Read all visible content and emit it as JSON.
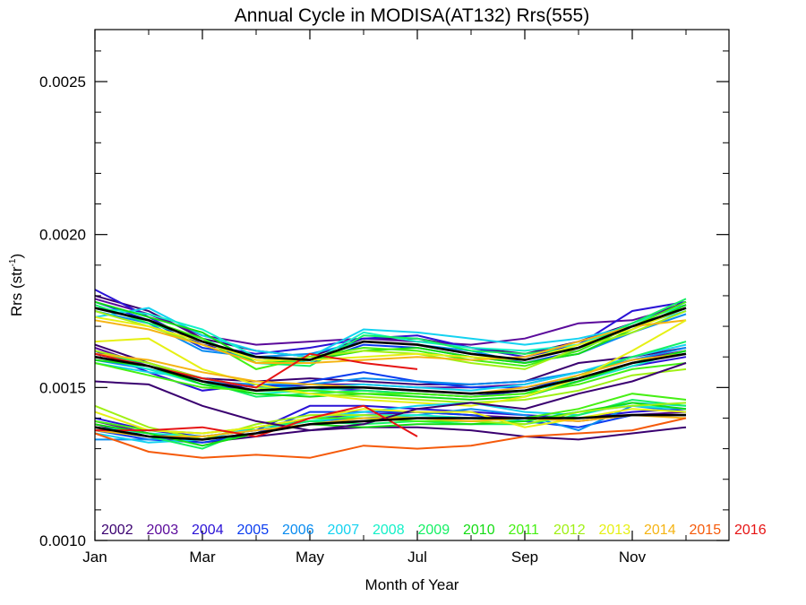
{
  "chart_data": {
    "type": "line",
    "title": "Annual Cycle in MODISA(AT132) Rrs(555)",
    "xlabel": "Month of Year",
    "ylabel_main": "Rrs (str",
    "ylabel_sup": "-1",
    "ylabel_close": ")",
    "xlim": [
      1,
      12.8
    ],
    "ylim": [
      0.001,
      0.00267
    ],
    "x_ticks": [
      {
        "value": 1,
        "label": "Jan"
      },
      {
        "value": 3,
        "label": "Mar"
      },
      {
        "value": 5,
        "label": "May"
      },
      {
        "value": 7,
        "label": "Jul"
      },
      {
        "value": 9,
        "label": "Sep"
      },
      {
        "value": 11,
        "label": "Nov"
      }
    ],
    "y_ticks": [
      {
        "value": 0.001,
        "label": "0.0010"
      },
      {
        "value": 0.0015,
        "label": "0.0015"
      },
      {
        "value": 0.002,
        "label": "0.0020"
      },
      {
        "value": 0.0025,
        "label": "0.0025"
      }
    ],
    "legend": [
      {
        "label": "2002",
        "color": "#3a0070"
      },
      {
        "label": "2003",
        "color": "#5b0a9b"
      },
      {
        "label": "2004",
        "color": "#2a12d6"
      },
      {
        "label": "2005",
        "color": "#0a3cf0"
      },
      {
        "label": "2006",
        "color": "#0a8cf0"
      },
      {
        "label": "2007",
        "color": "#14d2f0"
      },
      {
        "label": "2008",
        "color": "#14f0c8"
      },
      {
        "label": "2009",
        "color": "#14f064"
      },
      {
        "label": "2010",
        "color": "#14dc14"
      },
      {
        "label": "2011",
        "color": "#46f014"
      },
      {
        "label": "2012",
        "color": "#a0f014"
      },
      {
        "label": "2013",
        "color": "#e6f014"
      },
      {
        "label": "2014",
        "color": "#f5b414"
      },
      {
        "label": "2015",
        "color": "#f55a0a"
      },
      {
        "label": "2016",
        "color": "#e61414"
      }
    ],
    "line_groups": [
      {
        "name_key": "high",
        "means": [
          0.00176,
          0.00172,
          0.00165,
          0.0016,
          0.00159,
          0.00165,
          0.00164,
          0.00161,
          0.00159,
          0.00163,
          0.0017,
          0.00176
        ],
        "series": [
          [
            0.0018,
            0.00175,
            0.00166,
            0.00162,
            0.0016,
            0.00166,
            0.00166,
            0.00163,
            0.00161,
            0.00165,
            0.00171,
            0.00178
          ],
          [
            0.00179,
            0.00174,
            0.00167,
            0.00164,
            0.00165,
            0.00166,
            0.00165,
            0.00164,
            0.00166,
            0.00171,
            0.00172,
            0.00177
          ],
          [
            0.00182,
            0.00173,
            0.00164,
            0.00161,
            0.00163,
            0.00166,
            0.00167,
            0.00163,
            0.0016,
            0.00164,
            0.00175,
            0.00178
          ],
          [
            0.00178,
            0.00172,
            0.00163,
            0.0016,
            0.00158,
            0.00164,
            0.00163,
            0.0016,
            0.00158,
            0.00162,
            0.0017,
            0.00176
          ],
          [
            0.00175,
            0.00171,
            0.00162,
            0.0016,
            0.00161,
            0.00165,
            0.00164,
            0.00162,
            0.00158,
            0.00161,
            0.00168,
            0.00174
          ],
          [
            0.00173,
            0.00176,
            0.00167,
            0.00162,
            0.0016,
            0.00169,
            0.00168,
            0.00166,
            0.00164,
            0.00166,
            0.0017,
            0.00175
          ],
          [
            0.00176,
            0.00174,
            0.00169,
            0.0016,
            0.00158,
            0.00168,
            0.00165,
            0.00163,
            0.00162,
            0.00164,
            0.00171,
            0.00177
          ],
          [
            0.00177,
            0.00171,
            0.00166,
            0.00158,
            0.00157,
            0.00167,
            0.00166,
            0.00162,
            0.00161,
            0.00163,
            0.00171,
            0.00179
          ],
          [
            0.00178,
            0.00173,
            0.00168,
            0.00158,
            0.00159,
            0.00162,
            0.00163,
            0.0016,
            0.00158,
            0.00161,
            0.00169,
            0.00177
          ],
          [
            0.00176,
            0.00172,
            0.00166,
            0.00156,
            0.0016,
            0.00163,
            0.00162,
            0.00159,
            0.00157,
            0.00162,
            0.0017,
            0.00178
          ],
          [
            0.00175,
            0.0017,
            0.00164,
            0.00158,
            0.0016,
            0.00162,
            0.00161,
            0.00158,
            0.00156,
            0.00163,
            0.00168,
            0.00175
          ],
          [
            0.00173,
            0.0017,
            0.00165,
            0.00159,
            0.00159,
            0.0016,
            0.00161,
            0.0016,
            0.00159,
            0.00164,
            0.00169,
            0.00176
          ],
          [
            0.00172,
            0.00169,
            0.00164,
            0.00158,
            0.00158,
            0.00159,
            0.0016,
            0.00159,
            0.0016,
            0.00165,
            0.0017,
            0.00172
          ]
        ]
      },
      {
        "name_key": "mid",
        "means": [
          0.0016,
          0.00157,
          0.00152,
          0.00149,
          0.0015,
          0.0015,
          0.00149,
          0.00148,
          0.00149,
          0.00153,
          0.00158,
          0.00161
        ],
        "series": [
          [
            0.00164,
            0.00158,
            0.00153,
            0.00152,
            0.00153,
            0.00152,
            0.00151,
            0.00151,
            0.00152,
            0.00158,
            0.0016,
            0.00163
          ],
          [
            0.00163,
            0.00157,
            0.00152,
            0.0015,
            0.00151,
            0.00151,
            0.0015,
            0.0015,
            0.00151,
            0.00155,
            0.00159,
            0.00162
          ],
          [
            0.00162,
            0.00155,
            0.00149,
            0.00151,
            0.0015,
            0.00149,
            0.00148,
            0.00147,
            0.00149,
            0.00152,
            0.00157,
            0.0016
          ],
          [
            0.00161,
            0.00157,
            0.00151,
            0.00149,
            0.00152,
            0.00155,
            0.00152,
            0.0015,
            0.0015,
            0.00153,
            0.00158,
            0.00161
          ],
          [
            0.00159,
            0.00156,
            0.00152,
            0.00151,
            0.00151,
            0.00153,
            0.00152,
            0.00151,
            0.00152,
            0.00155,
            0.00159,
            0.00163
          ],
          [
            0.00158,
            0.00155,
            0.00153,
            0.0015,
            0.0015,
            0.00151,
            0.0015,
            0.00149,
            0.00151,
            0.00155,
            0.0016,
            0.00164
          ],
          [
            0.0016,
            0.00156,
            0.00151,
            0.00148,
            0.00149,
            0.0015,
            0.00149,
            0.00148,
            0.00149,
            0.00152,
            0.00157,
            0.00162
          ],
          [
            0.00161,
            0.00158,
            0.00152,
            0.00147,
            0.00148,
            0.00149,
            0.00148,
            0.00147,
            0.00148,
            0.00154,
            0.0016,
            0.00165
          ],
          [
            0.00159,
            0.00157,
            0.00151,
            0.00148,
            0.00147,
            0.00148,
            0.00147,
            0.00146,
            0.00147,
            0.00152,
            0.00158,
            0.00162
          ],
          [
            0.00158,
            0.00154,
            0.0015,
            0.00149,
            0.00149,
            0.00148,
            0.00148,
            0.00147,
            0.00148,
            0.00151,
            0.00156,
            0.00158
          ],
          [
            0.00162,
            0.00158,
            0.00153,
            0.0015,
            0.00148,
            0.00147,
            0.00146,
            0.00145,
            0.00146,
            0.00149,
            0.00154,
            0.00156
          ],
          [
            0.00165,
            0.00166,
            0.00156,
            0.00151,
            0.00148,
            0.00146,
            0.00145,
            0.00144,
            0.00147,
            0.00153,
            0.00162,
            0.00172
          ],
          [
            0.00161,
            0.00159,
            0.00155,
            0.00152,
            0.00151,
            0.0015,
            0.00149,
            0.00148,
            0.0015,
            0.00154,
            0.00159,
            0.00161
          ]
        ]
      },
      {
        "name_key": "low",
        "means": [
          0.00137,
          0.00134,
          0.00133,
          0.00135,
          0.00138,
          0.00139,
          0.0014,
          0.0014,
          0.0014,
          0.0014,
          0.00141,
          0.00141
        ],
        "series": [
          [
            0.00138,
            0.00134,
            0.00132,
            0.00134,
            0.00136,
            0.00137,
            0.00137,
            0.00136,
            0.00134,
            0.00133,
            0.00135,
            0.00137
          ],
          [
            0.00139,
            0.00135,
            0.00133,
            0.00135,
            0.0014,
            0.00141,
            0.00142,
            0.00141,
            0.0014,
            0.00139,
            0.00141,
            0.00142
          ],
          [
            0.0014,
            0.00136,
            0.00134,
            0.00136,
            0.00144,
            0.00144,
            0.00143,
            0.00142,
            0.00141,
            0.0014,
            0.00142,
            0.00143
          ],
          [
            0.00136,
            0.00133,
            0.00132,
            0.00135,
            0.00142,
            0.00142,
            0.00142,
            0.00141,
            0.00139,
            0.00137,
            0.00141,
            0.00141
          ],
          [
            0.00133,
            0.00133,
            0.00134,
            0.00136,
            0.00139,
            0.0014,
            0.00141,
            0.00143,
            0.00141,
            0.00136,
            0.00144,
            0.00142
          ],
          [
            0.00135,
            0.00132,
            0.00133,
            0.00137,
            0.0014,
            0.00142,
            0.00144,
            0.00145,
            0.00142,
            0.00141,
            0.00145,
            0.00144
          ],
          [
            0.00137,
            0.00135,
            0.00134,
            0.00136,
            0.00139,
            0.00141,
            0.00141,
            0.0014,
            0.00139,
            0.00142,
            0.00144,
            0.00143
          ],
          [
            0.00136,
            0.00134,
            0.0013,
            0.00137,
            0.00139,
            0.00138,
            0.00139,
            0.00138,
            0.00138,
            0.00141,
            0.00146,
            0.00144
          ],
          [
            0.00138,
            0.00135,
            0.00131,
            0.00135,
            0.00138,
            0.00137,
            0.00138,
            0.00138,
            0.00139,
            0.00142,
            0.00145,
            0.00143
          ],
          [
            0.00139,
            0.00136,
            0.00135,
            0.00137,
            0.0014,
            0.0014,
            0.00139,
            0.00139,
            0.0014,
            0.00143,
            0.00148,
            0.00146
          ],
          [
            0.00144,
            0.00137,
            0.00133,
            0.00138,
            0.00141,
            0.00141,
            0.0014,
            0.00139,
            0.00138,
            0.00142,
            0.00144,
            0.00145
          ],
          [
            0.00142,
            0.00136,
            0.00135,
            0.00137,
            0.0014,
            0.00143,
            0.00142,
            0.00142,
            0.00137,
            0.0014,
            0.00143,
            0.00142
          ],
          [
            0.00136,
            0.00134,
            0.00134,
            0.00136,
            0.00138,
            0.0014,
            0.0014,
            0.00139,
            0.0014,
            0.00139,
            0.00141,
            0.0014
          ],
          [
            0.00135,
            0.00129,
            0.00127,
            0.00128,
            0.00127,
            0.00131,
            0.0013,
            0.00131,
            0.00134,
            0.00135,
            0.00136,
            0.0014
          ],
          [
            0.00152,
            0.00151,
            0.00144,
            0.00139,
            0.00136,
            0.00138,
            0.00143,
            0.00145,
            0.00143,
            0.00148,
            0.00152,
            0.00158
          ]
        ]
      }
    ],
    "partial_2016": [
      {
        "x": [
          1,
          2,
          3,
          4,
          5,
          6,
          7
        ],
        "values": [
          0.00161,
          0.00157,
          0.00153,
          0.0015,
          0.00161,
          0.00158,
          0.00156
        ]
      },
      {
        "x": [
          1,
          2,
          3,
          4,
          5,
          6,
          7
        ],
        "values": [
          0.00136,
          0.00136,
          0.00137,
          0.00134,
          0.0014,
          0.00144,
          0.00134
        ]
      }
    ]
  }
}
